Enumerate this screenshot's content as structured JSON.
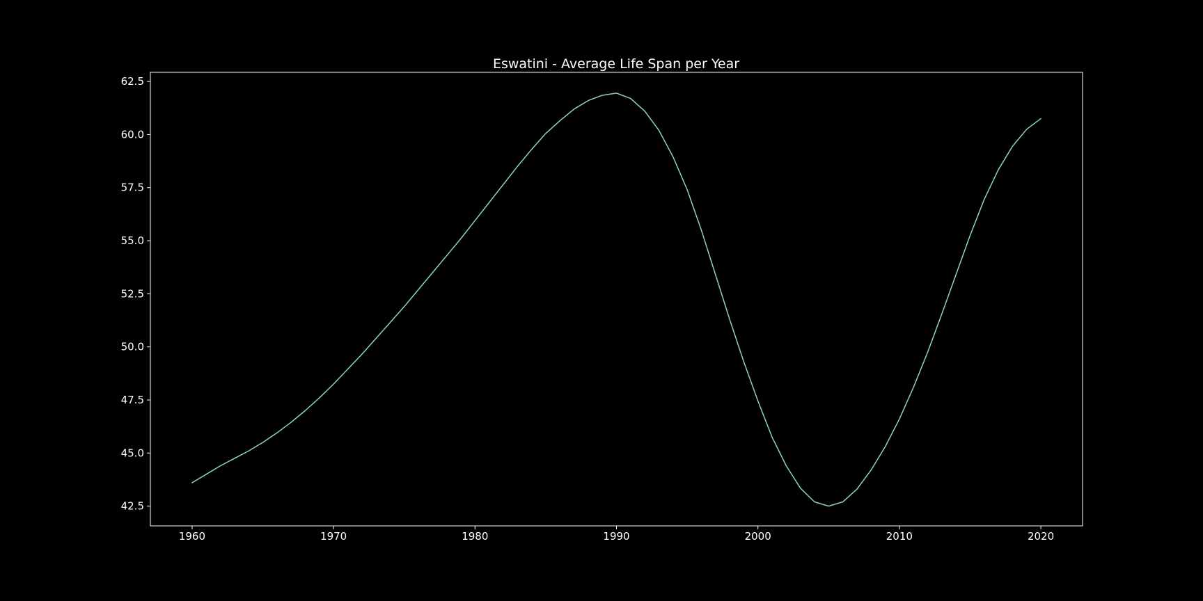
{
  "chart_data": {
    "type": "line",
    "title": "Eswatini - Average Life Span per Year",
    "xlabel": "",
    "ylabel": "",
    "xlim": [
      1957.05,
      2022.95
    ],
    "ylim": [
      41.57,
      62.93
    ],
    "x_ticks": [
      1960,
      1970,
      1980,
      1990,
      2000,
      2010,
      2020
    ],
    "y_ticks": [
      42.5,
      45.0,
      47.5,
      50.0,
      52.5,
      55.0,
      57.5,
      60.0,
      62.5
    ],
    "y_tick_labels": [
      "42.5",
      "45.0",
      "47.5",
      "50.0",
      "52.5",
      "55.0",
      "57.5",
      "60.0",
      "62.5"
    ],
    "grid": false,
    "series": [
      {
        "color": "#8dd3c7",
        "x": [
          1960,
          1961,
          1962,
          1963,
          1964,
          1965,
          1966,
          1967,
          1968,
          1969,
          1970,
          1971,
          1972,
          1973,
          1974,
          1975,
          1976,
          1977,
          1978,
          1979,
          1980,
          1981,
          1982,
          1983,
          1984,
          1985,
          1986,
          1987,
          1988,
          1989,
          1990,
          1991,
          1992,
          1993,
          1994,
          1995,
          1996,
          1997,
          1998,
          1999,
          2000,
          2001,
          2002,
          2003,
          2004,
          2005,
          2006,
          2007,
          2008,
          2009,
          2010,
          2011,
          2012,
          2013,
          2014,
          2015,
          2016,
          2017,
          2018,
          2019,
          2020
        ],
        "y": [
          43.6,
          44.0,
          44.4,
          44.75,
          45.1,
          45.5,
          45.95,
          46.45,
          47.0,
          47.6,
          48.25,
          48.95,
          49.65,
          50.4,
          51.15,
          51.9,
          52.7,
          53.5,
          54.3,
          55.1,
          55.95,
          56.8,
          57.65,
          58.5,
          59.3,
          60.05,
          60.65,
          61.2,
          61.6,
          61.85,
          61.95,
          61.7,
          61.1,
          60.2,
          58.95,
          57.4,
          55.5,
          53.4,
          51.3,
          49.3,
          47.45,
          45.75,
          44.4,
          43.35,
          42.7,
          42.5,
          42.7,
          43.3,
          44.2,
          45.3,
          46.6,
          48.1,
          49.75,
          51.55,
          53.4,
          55.25,
          56.95,
          58.35,
          59.45,
          60.25,
          60.75
        ]
      }
    ]
  }
}
